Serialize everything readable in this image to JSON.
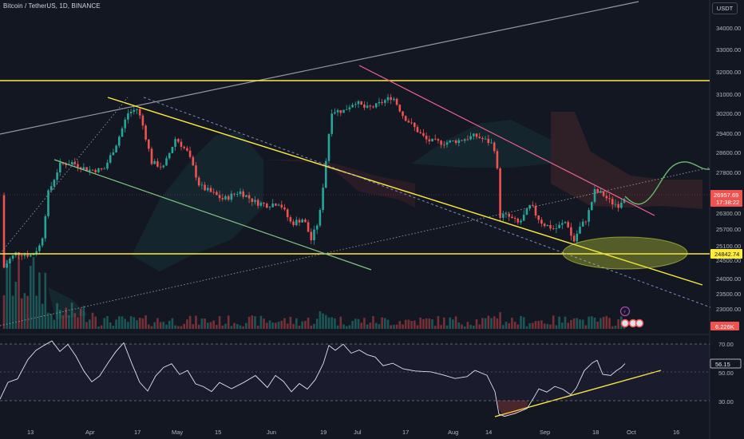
{
  "header": {
    "symbol_title": "Bitcoin / TetherUS, 1D, BINANCE",
    "currency_label": "USDT"
  },
  "colors": {
    "background": "#131722",
    "up": "#26a69a",
    "down": "#ef5350",
    "yellow": "#ffeb3b",
    "pink": "#f06292",
    "green_line": "#81c784",
    "grey_line": "#9598a1",
    "rsi_line": "#e0e3eb"
  },
  "price_axis": {
    "ticks": [
      "34000.00",
      "33000.00",
      "32000.00",
      "31000.00",
      "30200.00",
      "29400.00",
      "28600.00",
      "27800.00",
      "26300.00",
      "25700.00",
      "25100.00",
      "24500.00",
      "24000.00",
      "23500.00",
      "23000.00"
    ]
  },
  "price_tags": {
    "current_price": "26957.69",
    "countdown": "17:38:22",
    "support_level": "24842.74",
    "volume_value": "6.226K"
  },
  "rsi_axis": {
    "ticks": [
      "70.00",
      "50.00",
      "30.00"
    ],
    "current_value": "56.15"
  },
  "time_axis": {
    "labels": [
      "13",
      "Apr",
      "17",
      "May",
      "15",
      "Jun",
      "19",
      "Jul",
      "17",
      "Aug",
      "14",
      "Sep",
      "18",
      "Oct",
      "16"
    ]
  },
  "event_badge": "⚡",
  "chart_data": {
    "type": "candlestick",
    "symbol": "BTC/USDT",
    "interval": "1D",
    "x_axis": [
      "13",
      "Apr",
      "17",
      "May",
      "15",
      "Jun",
      "19",
      "Jul",
      "17",
      "Aug",
      "14",
      "Sep",
      "18",
      "Oct",
      "16"
    ],
    "ohlc_approx": [
      {
        "period": "Mar 13",
        "close": 24500
      },
      {
        "period": "Mar 20",
        "close": 27800
      },
      {
        "period": "Apr 14",
        "close": 30400
      },
      {
        "period": "May",
        "close": 27800
      },
      {
        "period": "Jun 15",
        "close": 25100
      },
      {
        "period": "Jun 22",
        "close": 30200
      },
      {
        "period": "Jul 13",
        "close": 31400
      },
      {
        "period": "Aug 14",
        "close": 29300
      },
      {
        "period": "Aug 17",
        "close": 26300
      },
      {
        "period": "Sep 11",
        "close": 25100
      },
      {
        "period": "Sep 28",
        "close": 26957.69
      }
    ],
    "levels": {
      "resistance": 31600,
      "support": 24842.74
    },
    "projection": "bullish curve above 27800",
    "rsi": {
      "current": 56.15,
      "levels": [
        70,
        50,
        30
      ],
      "low_in_august": 24
    },
    "volume_last": "6.226K"
  }
}
